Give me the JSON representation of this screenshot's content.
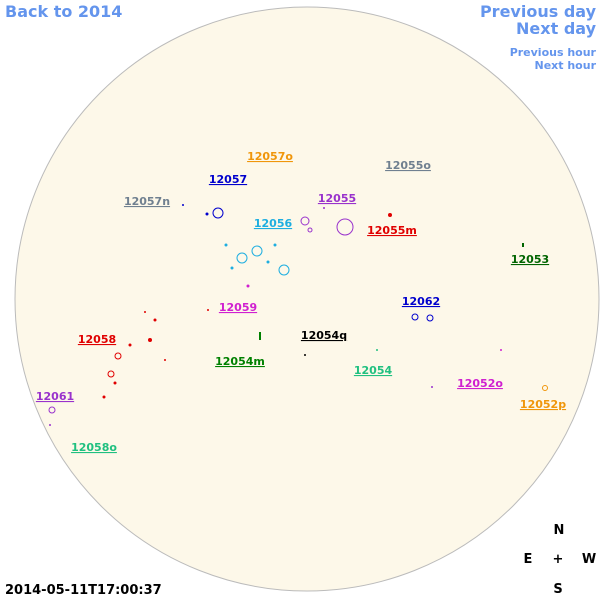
{
  "navigation": {
    "back": "Back to 2014",
    "previous_day": "Previous day",
    "next_day": "Next day",
    "previous_hour": "Previous hour",
    "next_hour": "Next hour"
  },
  "regions": [
    {
      "label": "12057o",
      "color": "#f0960a"
    },
    {
      "label": "12055o",
      "color": "#708090"
    },
    {
      "label": "12057",
      "color": "#0000cd"
    },
    {
      "label": "12057n",
      "color": "#708090"
    },
    {
      "label": "12055",
      "color": "#9932cc"
    },
    {
      "label": "12056",
      "color": "#1eaee0"
    },
    {
      "label": "12055m",
      "color": "#e00000"
    },
    {
      "label": "12053",
      "color": "#006400"
    },
    {
      "label": "12062",
      "color": "#0000cd"
    },
    {
      "label": "12059",
      "color": "#d020d0"
    },
    {
      "label": "12054q",
      "color": "#000000"
    },
    {
      "label": "12058",
      "color": "#e00000"
    },
    {
      "label": "12054m",
      "color": "#008000"
    },
    {
      "label": "12054",
      "color": "#20c080"
    },
    {
      "label": "12052o",
      "color": "#d020d0"
    },
    {
      "label": "12061",
      "color": "#9932cc"
    },
    {
      "label": "12052p",
      "color": "#f0960a"
    },
    {
      "label": "12058o",
      "color": "#20c080"
    }
  ],
  "compass": {
    "north": "N",
    "east": "E",
    "center": "+",
    "west": "W",
    "south": "S"
  },
  "timestamp": "2014-05-11T17:00:37"
}
